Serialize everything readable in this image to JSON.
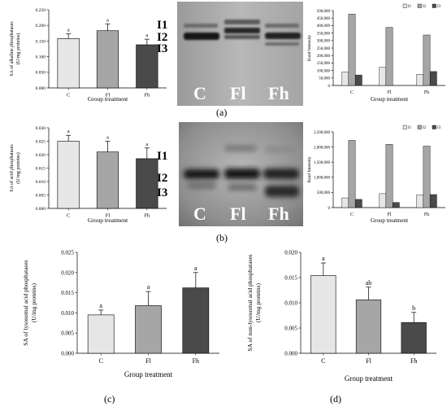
{
  "panel_labels": [
    "(a)",
    "(b)",
    "(c)",
    "(d)"
  ],
  "gels": {
    "a": {
      "lanes": [
        "C",
        "Fl",
        "Fh"
      ],
      "isoforms": [
        "I1",
        "I2",
        "I3"
      ]
    },
    "b": {
      "lanes": [
        "C",
        "Fl",
        "Fh"
      ],
      "isoforms": [
        "I1",
        "I2",
        "I3"
      ]
    }
  },
  "colors": {
    "C": "#e6e6e6",
    "Fl": "#a6a6a6",
    "Fh": "#4a4a4a",
    "I1": "#e6e6e6",
    "I2": "#a6a6a6",
    "I3": "#4a4a4a"
  },
  "chart_data": [
    {
      "id": "a-left",
      "type": "bar",
      "categories": [
        "C",
        "Fl",
        "Fh"
      ],
      "values": [
        0.158,
        0.183,
        0.138
      ],
      "errors": [
        0.015,
        0.022,
        0.018
      ],
      "letters": [
        "a",
        "a",
        "a"
      ],
      "ylim": [
        0,
        0.25
      ],
      "yticks": [
        "0.000",
        "0.050",
        "0.100",
        "0.150",
        "0.200",
        "0.250"
      ],
      "ylabel": [
        "SA of alkaline phosphatases",
        "(U/mg proteins)"
      ],
      "xlabel": "Group treatment"
    },
    {
      "id": "a-right",
      "type": "bar",
      "categories": [
        "C",
        "Fl",
        "Fh"
      ],
      "series": [
        {
          "name": "I1",
          "values": [
            90000,
            122000,
            75000
          ]
        },
        {
          "name": "I2",
          "values": [
            477000,
            388000,
            337000
          ]
        },
        {
          "name": "I3",
          "values": [
            70000,
            0,
            93000
          ]
        }
      ],
      "ylim": [
        0,
        500000
      ],
      "yticks": [
        "0",
        "50,000",
        "100,000",
        "150,000",
        "200,000",
        "250,000",
        "300,000",
        "350,000",
        "400,000",
        "450,000",
        "500,000"
      ],
      "ylabel": "Band Intensity",
      "xlabel": "Group treatment",
      "legend": "top-right"
    },
    {
      "id": "b-left",
      "type": "bar",
      "categories": [
        "C",
        "Fl",
        "Fh"
      ],
      "values": [
        0.025,
        0.021,
        0.0185
      ],
      "errors": [
        0.0022,
        0.004,
        0.004
      ],
      "letters": [
        "a",
        "a",
        "a"
      ],
      "ylim": [
        0,
        0.03
      ],
      "yticks": [
        "0.000",
        "0.005",
        "0.010",
        "0.015",
        "0.020",
        "0.025",
        "0.030"
      ],
      "ylabel": [
        "SA of acid phosphatases",
        "(U/mg proteins)"
      ],
      "xlabel": "Group treatment"
    },
    {
      "id": "b-right",
      "type": "bar",
      "categories": [
        "C",
        "Fl",
        "Fh"
      ],
      "series": [
        {
          "name": "I1",
          "values": [
            320000,
            460000,
            420000
          ]
        },
        {
          "name": "I2",
          "values": [
            2220000,
            2090000,
            2030000
          ]
        },
        {
          "name": "I3",
          "values": [
            270000,
            170000,
            430000
          ]
        }
      ],
      "ylim": [
        0,
        2500000
      ],
      "yticks": [
        "0",
        "500,000",
        "1,000,000",
        "1,500,000",
        "2,000,000",
        "2,500,000"
      ],
      "ylabel": "Band Intensity",
      "xlabel": "Group treatment",
      "legend": "top-right"
    },
    {
      "id": "c",
      "type": "bar",
      "categories": [
        "C",
        "Fl",
        "Fh"
      ],
      "values": [
        0.0095,
        0.0118,
        0.0162
      ],
      "errors": [
        0.0012,
        0.0035,
        0.0038
      ],
      "letters": [
        "a",
        "a",
        "a"
      ],
      "ylim": [
        0,
        0.025
      ],
      "yticks": [
        "0.000",
        "0.005",
        "0.010",
        "0.015",
        "0.020",
        "0.025"
      ],
      "ylabel": [
        "SA of lysosomal acid phosphatases",
        "(U/mg proteins)"
      ],
      "xlabel": "Group treatment"
    },
    {
      "id": "d",
      "type": "bar",
      "categories": [
        "C",
        "Fl",
        "Fh"
      ],
      "values": [
        0.0154,
        0.0106,
        0.0061
      ],
      "errors": [
        0.0025,
        0.0025,
        0.002
      ],
      "letters": [
        "a",
        "ab",
        "b"
      ],
      "ylim": [
        0,
        0.02
      ],
      "yticks": [
        "0.000",
        "0.005",
        "0.010",
        "0.015",
        "0.020"
      ],
      "ylabel": [
        "SA of non-lysosomal acid phosphatases",
        "(U/mg proteins)"
      ],
      "xlabel": "Group treatment"
    }
  ]
}
